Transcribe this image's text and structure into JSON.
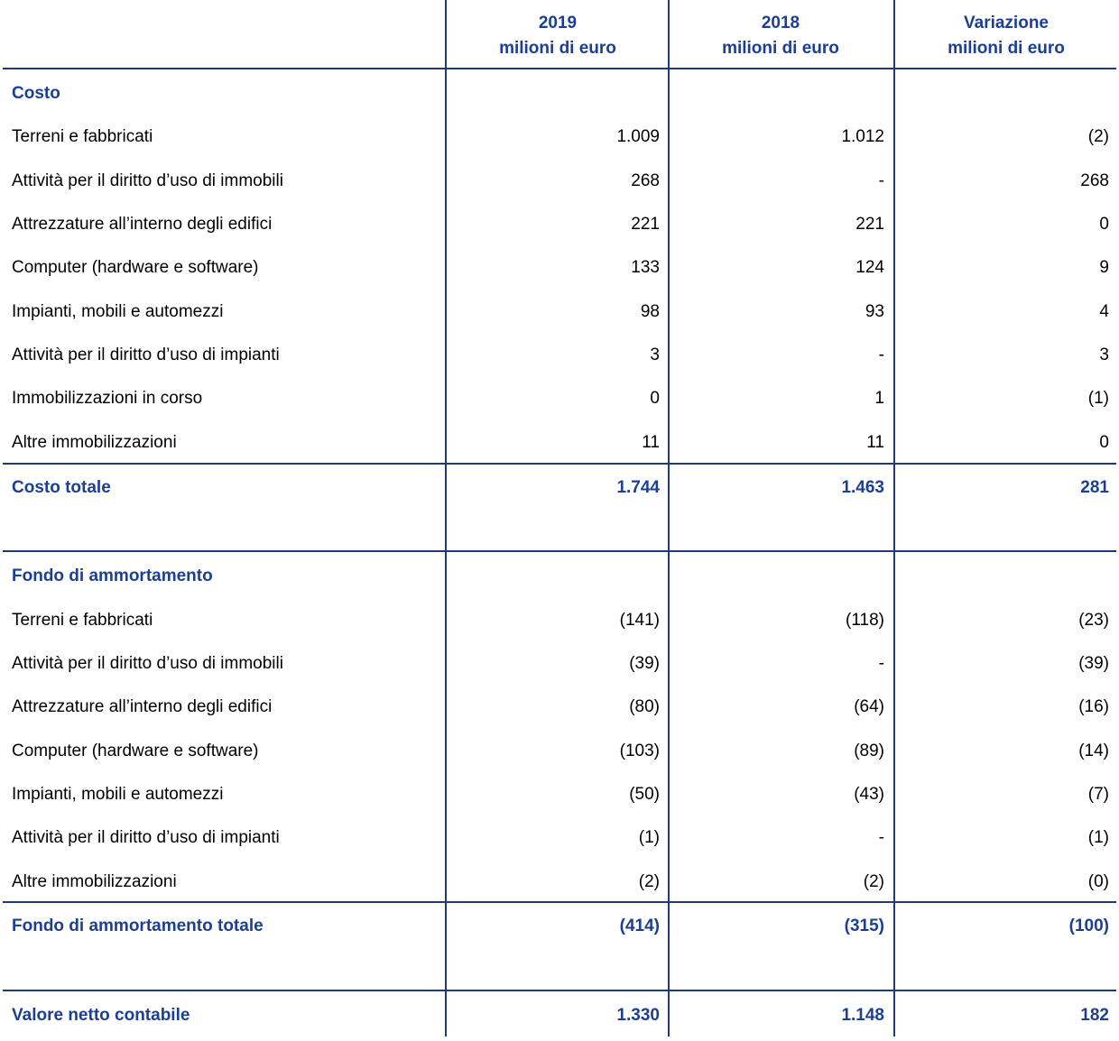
{
  "headers": [
    {
      "year": "2019",
      "unit": "milioni di euro"
    },
    {
      "year": "2018",
      "unit": "milioni di euro"
    },
    {
      "year": "Variazione",
      "unit": "milioni di euro"
    }
  ],
  "costo": {
    "title": "Costo",
    "rows": [
      {
        "label": "Terreni e fabbricati",
        "v2019": "1.009",
        "v2018": "1.012",
        "var": "(2)"
      },
      {
        "label": "Attività per il diritto d’uso di immobili",
        "v2019": "268",
        "v2018": "-",
        "var": "268"
      },
      {
        "label": "Attrezzature all’interno degli edifici",
        "v2019": "221",
        "v2018": "221",
        "var": "0"
      },
      {
        "label": "Computer (hardware e software)",
        "v2019": "133",
        "v2018": "124",
        "var": "9"
      },
      {
        "label": "Impianti, mobili e automezzi",
        "v2019": "98",
        "v2018": "93",
        "var": "4"
      },
      {
        "label": "Attività per il diritto d’uso di impianti",
        "v2019": "3",
        "v2018": "-",
        "var": "3"
      },
      {
        "label": "Immobilizzazioni in corso",
        "v2019": "0",
        "v2018": "1",
        "var": "(1)"
      },
      {
        "label": "Altre immobilizzazioni",
        "v2019": "11",
        "v2018": "11",
        "var": "0"
      }
    ],
    "total": {
      "label": "Costo totale",
      "v2019": "1.744",
      "v2018": "1.463",
      "var": "281"
    }
  },
  "fondo": {
    "title": "Fondo di ammortamento",
    "rows": [
      {
        "label": "Terreni e fabbricati",
        "v2019": "(141)",
        "v2018": "(118)",
        "var": "(23)"
      },
      {
        "label": "Attività per il diritto d’uso di immobili",
        "v2019": "(39)",
        "v2018": "-",
        "var": "(39)"
      },
      {
        "label": "Attrezzature all’interno degli edifici",
        "v2019": "(80)",
        "v2018": "(64)",
        "var": "(16)"
      },
      {
        "label": "Computer (hardware e software)",
        "v2019": "(103)",
        "v2018": "(89)",
        "var": "(14)"
      },
      {
        "label": "Impianti, mobili e automezzi",
        "v2019": "(50)",
        "v2018": "(43)",
        "var": "(7)"
      },
      {
        "label": "Attività per il diritto d’uso di impianti",
        "v2019": "(1)",
        "v2018": "-",
        "var": "(1)"
      },
      {
        "label": "Altre immobilizzazioni",
        "v2019": "(2)",
        "v2018": "(2)",
        "var": "(0)"
      }
    ],
    "total": {
      "label": "Fondo di ammortamento totale",
      "v2019": "(414)",
      "v2018": "(315)",
      "var": "(100)"
    }
  },
  "netto": {
    "label": "Valore netto contabile",
    "v2019": "1.330",
    "v2018": "1.148",
    "var": "182"
  }
}
